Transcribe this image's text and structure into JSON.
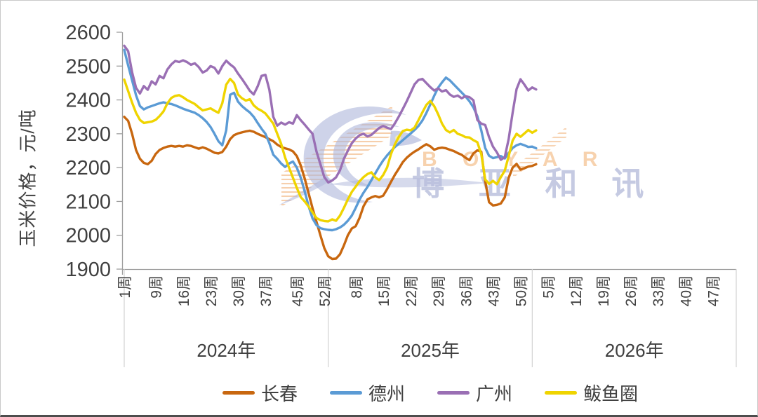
{
  "chart_data": {
    "type": "line",
    "title": "",
    "ylabel": "玉米价格，元/吨",
    "ylim": [
      1900,
      2600
    ],
    "y_tick_step": 100,
    "grid": false,
    "legend_position": "bottom",
    "x_axis": {
      "unit_suffix": "周",
      "weeks_per_year": 52,
      "year_groups": [
        {
          "label": "2024年",
          "weeks": [
            1,
            9,
            16,
            23,
            30,
            37,
            45,
            52
          ]
        },
        {
          "label": "2025年",
          "weeks": [
            8,
            15,
            22,
            29,
            36,
            43,
            50
          ]
        },
        {
          "label": "2026年",
          "weeks": [
            5,
            12,
            19,
            26,
            33,
            40,
            47
          ]
        }
      ]
    },
    "series": [
      {
        "name": "长春",
        "key": "changchun",
        "color": "#C8670F",
        "start_week": 1,
        "values": [
          2350,
          2338,
          2300,
          2252,
          2226,
          2214,
          2210,
          2220,
          2240,
          2252,
          2258,
          2262,
          2264,
          2262,
          2264,
          2262,
          2266,
          2264,
          2260,
          2256,
          2260,
          2256,
          2250,
          2244,
          2242,
          2246,
          2262,
          2284,
          2296,
          2301,
          2304,
          2307,
          2309,
          2306,
          2300,
          2295,
          2290,
          2284,
          2278,
          2268,
          2261,
          2257,
          2254,
          2248,
          2234,
          2206,
          2168,
          2124,
          2080,
          2040,
          2000,
          1962,
          1938,
          1930,
          1931,
          1944,
          1970,
          2000,
          2020,
          2027,
          2052,
          2086,
          2106,
          2112,
          2116,
          2112,
          2117,
          2136,
          2158,
          2179,
          2197,
          2216,
          2229,
          2239,
          2247,
          2254,
          2262,
          2269,
          2263,
          2253,
          2257,
          2259,
          2257,
          2253,
          2249,
          2243,
          2238,
          2229,
          2222,
          2242,
          2251,
          2247,
          2160,
          2098,
          2088,
          2090,
          2094,
          2112,
          2170,
          2200,
          2211,
          2194,
          2198,
          2203,
          2205,
          2210
        ]
      },
      {
        "name": "德州",
        "key": "dezhou",
        "color": "#5B9BD5",
        "start_week": 1,
        "values": [
          2548,
          2502,
          2458,
          2414,
          2382,
          2372,
          2378,
          2382,
          2386,
          2390,
          2393,
          2390,
          2388,
          2384,
          2379,
          2374,
          2370,
          2366,
          2362,
          2355,
          2346,
          2335,
          2320,
          2300,
          2278,
          2266,
          2310,
          2415,
          2421,
          2395,
          2382,
          2372,
          2363,
          2350,
          2332,
          2315,
          2300,
          2272,
          2238,
          2226,
          2212,
          2202,
          2212,
          2218,
          2200,
          2170,
          2130,
          2086,
          2050,
          2030,
          2021,
          2018,
          2016,
          2015,
          2018,
          2023,
          2031,
          2043,
          2058,
          2081,
          2106,
          2126,
          2143,
          2163,
          2183,
          2203,
          2221,
          2236,
          2249,
          2261,
          2271,
          2281,
          2291,
          2301,
          2311,
          2323,
          2339,
          2361,
          2386,
          2412,
          2436,
          2452,
          2466,
          2458,
          2446,
          2434,
          2422,
          2410,
          2396,
          2378,
          2352,
          2310,
          2258,
          2235,
          2228,
          2231,
          2234,
          2227,
          2243,
          2258,
          2266,
          2270,
          2266,
          2261,
          2262,
          2257
        ]
      },
      {
        "name": "广州",
        "key": "guangzhou",
        "color": "#9A6FB4",
        "start_week": 1,
        "values": [
          2560,
          2544,
          2482,
          2436,
          2419,
          2441,
          2430,
          2455,
          2446,
          2471,
          2464,
          2490,
          2505,
          2515,
          2512,
          2517,
          2512,
          2504,
          2508,
          2497,
          2481,
          2487,
          2500,
          2495,
          2478,
          2500,
          2516,
          2505,
          2496,
          2478,
          2462,
          2445,
          2427,
          2416,
          2440,
          2471,
          2474,
          2430,
          2350,
          2324,
          2333,
          2327,
          2334,
          2330,
          2355,
          2340,
          2327,
          2313,
          2300,
          2248,
          2210,
          2172,
          2156,
          2162,
          2171,
          2192,
          2226,
          2250,
          2272,
          2286,
          2296,
          2300,
          2292,
          2297,
          2307,
          2317,
          2323,
          2318,
          2314,
          2331,
          2351,
          2373,
          2396,
          2421,
          2446,
          2459,
          2462,
          2450,
          2438,
          2428,
          2434,
          2425,
          2429,
          2416,
          2409,
          2413,
          2405,
          2411,
          2408,
          2399,
          2341,
          2330,
          2326,
          2290,
          2262,
          2245,
          2223,
          2231,
          2285,
          2362,
          2432,
          2461,
          2445,
          2428,
          2437,
          2431
        ]
      },
      {
        "name": "鲅鱼圈",
        "key": "bayuquan",
        "color": "#EFD400",
        "start_week": 1,
        "values": [
          2460,
          2426,
          2392,
          2362,
          2341,
          2332,
          2334,
          2336,
          2341,
          2352,
          2366,
          2390,
          2406,
          2412,
          2414,
          2408,
          2400,
          2394,
          2388,
          2378,
          2369,
          2372,
          2375,
          2368,
          2362,
          2390,
          2445,
          2462,
          2450,
          2416,
          2405,
          2398,
          2402,
          2384,
          2374,
          2368,
          2360,
          2345,
          2330,
          2300,
          2270,
          2230,
          2200,
          2170,
          2140,
          2113,
          2100,
          2085,
          2068,
          2051,
          2045,
          2042,
          2041,
          2047,
          2043,
          2058,
          2081,
          2106,
          2128,
          2144,
          2160,
          2172,
          2181,
          2186,
          2171,
          2163,
          2178,
          2200,
          2240,
          2269,
          2291,
          2308,
          2312,
          2310,
          2318,
          2340,
          2363,
          2385,
          2397,
          2382,
          2358,
          2330,
          2311,
          2304,
          2311,
          2300,
          2296,
          2290,
          2289,
          2281,
          2275,
          2240,
          2165,
          2152,
          2161,
          2151,
          2172,
          2191,
          2234,
          2280,
          2300,
          2291,
          2301,
          2311,
          2303,
          2310
        ]
      }
    ]
  },
  "watermark": {
    "brand_latin": "B O Y A R",
    "brand_cn": "博 亚 和 讯"
  }
}
